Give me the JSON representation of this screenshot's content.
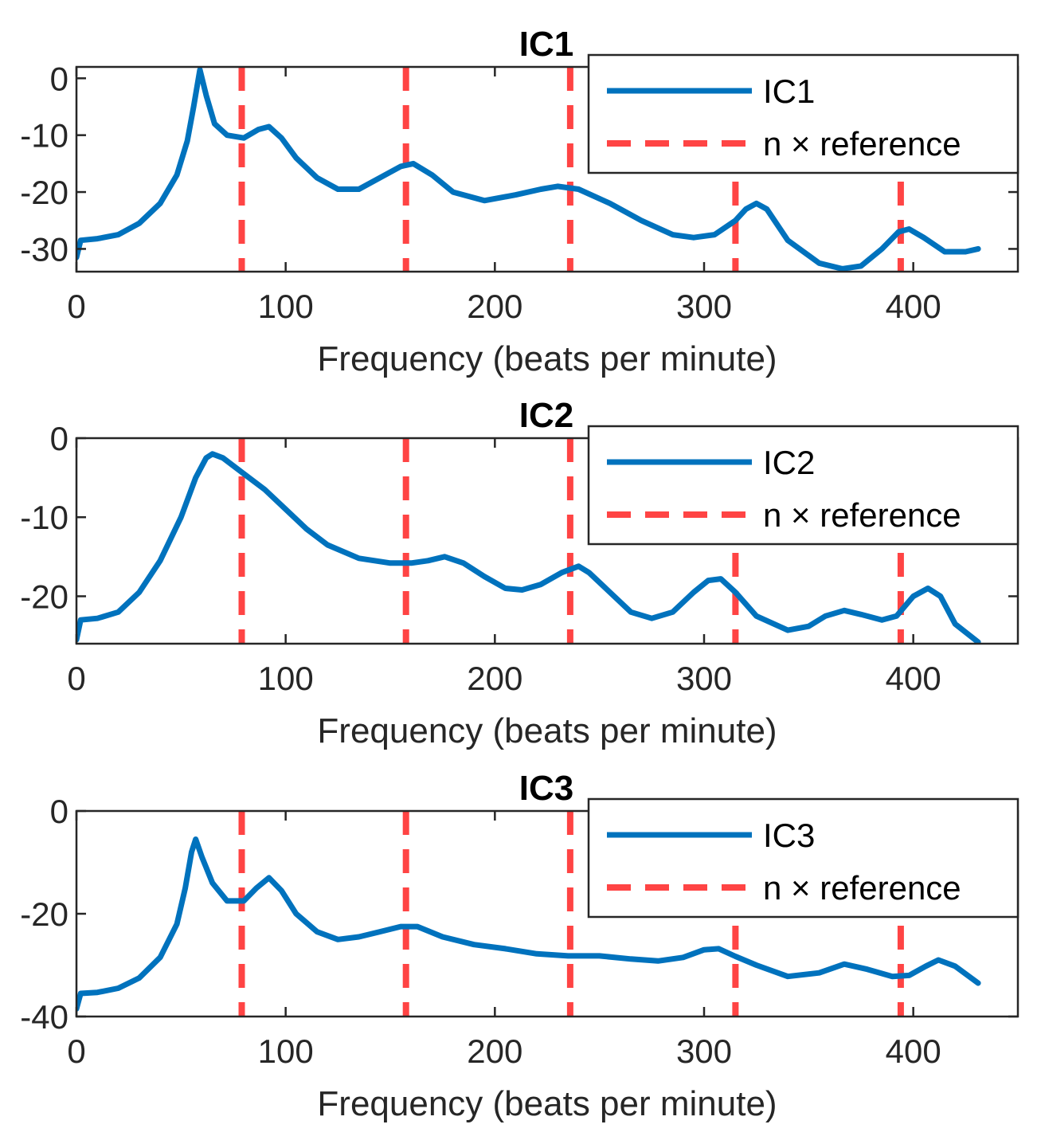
{
  "chart_data": [
    {
      "type": "line",
      "title": "IC1",
      "xlabel": "Frequency (beats per minute)",
      "ylabel": "",
      "xlim": [
        0,
        450
      ],
      "ylim": [
        -34,
        2
      ],
      "xticks": [
        0,
        100,
        200,
        300,
        400
      ],
      "yticks": [
        0,
        -10,
        -20,
        -30
      ],
      "legend_position": "top-right",
      "reference_lines": {
        "name": "n × reference",
        "x": [
          79,
          157.5,
          236,
          315,
          394
        ],
        "color": "#ff4444"
      },
      "series": [
        {
          "name": "IC1",
          "color": "#0072bd",
          "x": [
            0,
            2,
            10,
            20,
            30,
            40,
            48,
            53,
            56,
            59,
            62,
            66,
            72,
            80,
            87,
            92,
            98,
            105,
            115,
            125,
            135,
            145,
            155,
            161,
            170,
            180,
            195,
            210,
            222,
            230,
            240,
            255,
            270,
            285,
            295,
            305,
            315,
            320,
            325,
            330,
            340,
            355,
            366,
            375,
            385,
            393,
            398,
            405,
            415,
            425,
            431
          ],
          "y": [
            -31.5,
            -28.5,
            -28.2,
            -27.5,
            -25.5,
            -22,
            -17,
            -11,
            -5,
            1.5,
            -3,
            -8,
            -10,
            -10.5,
            -9,
            -8.5,
            -10.5,
            -14,
            -17.5,
            -19.5,
            -19.5,
            -17.5,
            -15.5,
            -15,
            -17,
            -20,
            -21.5,
            -20.5,
            -19.5,
            -19,
            -19.5,
            -22,
            -25,
            -27.5,
            -28,
            -27.5,
            -25,
            -23,
            -22,
            -23,
            -28.5,
            -32.5,
            -33.5,
            -33,
            -30,
            -27,
            -26.5,
            -28,
            -30.5,
            -30.5,
            -30
          ]
        }
      ]
    },
    {
      "type": "line",
      "title": "IC2",
      "xlabel": "Frequency (beats per minute)",
      "ylabel": "",
      "xlim": [
        0,
        450
      ],
      "ylim": [
        -26,
        0
      ],
      "xticks": [
        0,
        100,
        200,
        300,
        400
      ],
      "yticks": [
        0,
        -10,
        -20
      ],
      "legend_position": "top-right",
      "reference_lines": {
        "name": "n × reference",
        "x": [
          79,
          157.5,
          236,
          315,
          394
        ],
        "color": "#ff4444"
      },
      "series": [
        {
          "name": "IC2",
          "color": "#0072bd",
          "x": [
            0,
            2,
            10,
            20,
            30,
            40,
            50,
            57,
            62,
            65,
            70,
            80,
            90,
            100,
            110,
            120,
            135,
            150,
            160,
            168,
            176,
            185,
            195,
            205,
            213,
            222,
            232,
            240,
            245,
            255,
            265,
            275,
            285,
            295,
            302,
            308,
            315,
            325,
            340,
            350,
            358,
            367,
            375,
            385,
            392,
            400,
            407,
            413,
            420,
            431
          ],
          "y": [
            -25.5,
            -23,
            -22.8,
            -22,
            -19.5,
            -15.5,
            -10,
            -5,
            -2.5,
            -2,
            -2.5,
            -4.5,
            -6.5,
            -9,
            -11.5,
            -13.5,
            -15.2,
            -15.8,
            -15.8,
            -15.5,
            -15,
            -15.8,
            -17.5,
            -19,
            -19.2,
            -18.5,
            -17,
            -16.2,
            -17,
            -19.5,
            -22,
            -22.8,
            -22,
            -19.5,
            -18,
            -17.8,
            -19.5,
            -22.5,
            -24.3,
            -23.8,
            -22.5,
            -21.8,
            -22.3,
            -23,
            -22.5,
            -20,
            -19,
            -20,
            -23.5,
            -25.8
          ]
        }
      ]
    },
    {
      "type": "line",
      "title": "IC3",
      "xlabel": "Frequency (beats per minute)",
      "ylabel": "",
      "xlim": [
        0,
        450
      ],
      "ylim": [
        -40,
        0
      ],
      "xticks": [
        0,
        100,
        200,
        300,
        400
      ],
      "yticks": [
        0,
        -20,
        -40
      ],
      "legend_position": "top-right",
      "reference_lines": {
        "name": "n × reference",
        "x": [
          79,
          157.5,
          236,
          315,
          394
        ],
        "color": "#ff4444"
      },
      "series": [
        {
          "name": "IC3",
          "color": "#0072bd",
          "x": [
            0,
            2,
            10,
            20,
            30,
            40,
            48,
            52,
            55,
            57,
            60,
            65,
            72,
            80,
            86,
            92,
            98,
            105,
            115,
            125,
            135,
            145,
            155,
            163,
            175,
            190,
            205,
            220,
            235,
            250,
            265,
            278,
            290,
            300,
            307,
            315,
            325,
            340,
            355,
            367,
            378,
            390,
            398,
            406,
            412,
            420,
            431
          ],
          "y": [
            -38.5,
            -35.5,
            -35.3,
            -34.5,
            -32.5,
            -28.5,
            -22,
            -15,
            -8,
            -5.5,
            -9,
            -14,
            -17.5,
            -17.5,
            -15,
            -13,
            -15.5,
            -20,
            -23.5,
            -25,
            -24.5,
            -23.5,
            -22.5,
            -22.5,
            -24.5,
            -26,
            -26.8,
            -27.8,
            -28.2,
            -28.2,
            -28.8,
            -29.2,
            -28.5,
            -27,
            -26.8,
            -28.3,
            -30,
            -32.2,
            -31.5,
            -29.8,
            -30.8,
            -32.2,
            -32,
            -30.2,
            -29,
            -30.2,
            -33.5
          ]
        }
      ]
    }
  ]
}
